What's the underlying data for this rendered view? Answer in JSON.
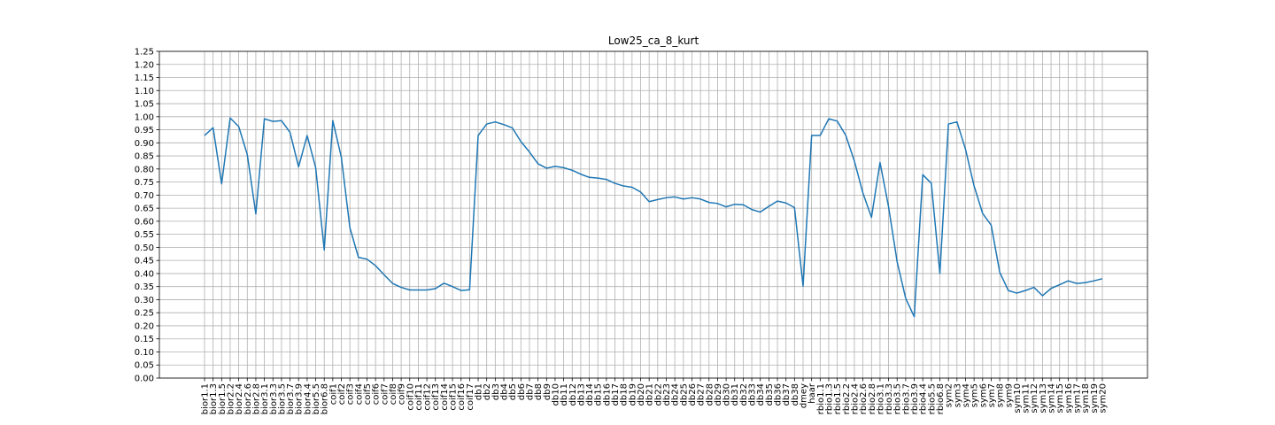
{
  "chart_data": {
    "type": "line",
    "title": "Low25_ca_8_kurt",
    "xlabel": "",
    "ylabel": "",
    "ylim": [
      0,
      1.25
    ],
    "y_ticks": [
      "0.00",
      "0.05",
      "0.10",
      "0.15",
      "0.20",
      "0.25",
      "0.30",
      "0.35",
      "0.40",
      "0.45",
      "0.50",
      "0.55",
      "0.60",
      "0.65",
      "0.70",
      "0.75",
      "0.80",
      "0.85",
      "0.90",
      "0.95",
      "1.00",
      "1.05",
      "1.10",
      "1.15",
      "1.20",
      "1.25"
    ],
    "grid": true,
    "line_color": "#1f77b4",
    "categories": [
      "bior1.1",
      "bior1.3",
      "bior1.5",
      "bior2.2",
      "bior2.4",
      "bior2.6",
      "bior2.8",
      "bior3.1",
      "bior3.3",
      "bior3.5",
      "bior3.7",
      "bior3.9",
      "bior4.4",
      "bior5.5",
      "bior6.8",
      "coif1",
      "coif2",
      "coif3",
      "coif4",
      "coif5",
      "coif6",
      "coif7",
      "coif8",
      "coif9",
      "coif10",
      "coif11",
      "coif12",
      "coif13",
      "coif14",
      "coif15",
      "coif16",
      "coif17",
      "db1",
      "db2",
      "db3",
      "db4",
      "db5",
      "db6",
      "db7",
      "db8",
      "db9",
      "db10",
      "db11",
      "db12",
      "db13",
      "db14",
      "db15",
      "db16",
      "db17",
      "db18",
      "db19",
      "db20",
      "db21",
      "db22",
      "db23",
      "db24",
      "db25",
      "db26",
      "db27",
      "db28",
      "db29",
      "db30",
      "db31",
      "db32",
      "db33",
      "db34",
      "db35",
      "db36",
      "db37",
      "db38",
      "dmey",
      "haar",
      "rbio1.1",
      "rbio1.3",
      "rbio1.5",
      "rbio2.2",
      "rbio2.4",
      "rbio2.6",
      "rbio2.8",
      "rbio3.1",
      "rbio3.3",
      "rbio3.5",
      "rbio3.7",
      "rbio3.9",
      "rbio4.4",
      "rbio5.5",
      "rbio6.8",
      "sym2",
      "sym3",
      "sym4",
      "sym5",
      "sym6",
      "sym7",
      "sym8",
      "sym9",
      "sym10",
      "sym11",
      "sym12",
      "sym13",
      "sym14",
      "sym15",
      "sym16",
      "sym17",
      "sym18",
      "sym19",
      "sym20"
    ],
    "values": [
      0.928,
      0.958,
      0.743,
      0.995,
      0.962,
      0.855,
      0.628,
      0.992,
      0.982,
      0.985,
      0.94,
      0.808,
      0.928,
      0.805,
      0.49,
      0.985,
      0.845,
      0.575,
      0.462,
      0.455,
      0.43,
      0.395,
      0.362,
      0.347,
      0.337,
      0.337,
      0.337,
      0.342,
      0.363,
      0.35,
      0.335,
      0.338,
      0.928,
      0.972,
      0.98,
      0.97,
      0.957,
      0.905,
      0.865,
      0.82,
      0.803,
      0.81,
      0.805,
      0.795,
      0.78,
      0.768,
      0.765,
      0.76,
      0.745,
      0.735,
      0.73,
      0.712,
      0.675,
      0.683,
      0.69,
      0.693,
      0.685,
      0.69,
      0.685,
      0.672,
      0.668,
      0.655,
      0.665,
      0.663,
      0.645,
      0.635,
      0.657,
      0.677,
      0.67,
      0.652,
      0.352,
      0.928,
      0.928,
      0.992,
      0.983,
      0.928,
      0.83,
      0.708,
      0.615,
      0.825,
      0.655,
      0.445,
      0.305,
      0.235,
      0.778,
      0.745,
      0.4,
      0.972,
      0.98,
      0.875,
      0.735,
      0.63,
      0.585,
      0.405,
      0.335,
      0.325,
      0.335,
      0.347,
      0.315,
      0.343,
      0.357,
      0.372,
      0.362,
      0.365,
      0.372,
      0.38
    ]
  }
}
